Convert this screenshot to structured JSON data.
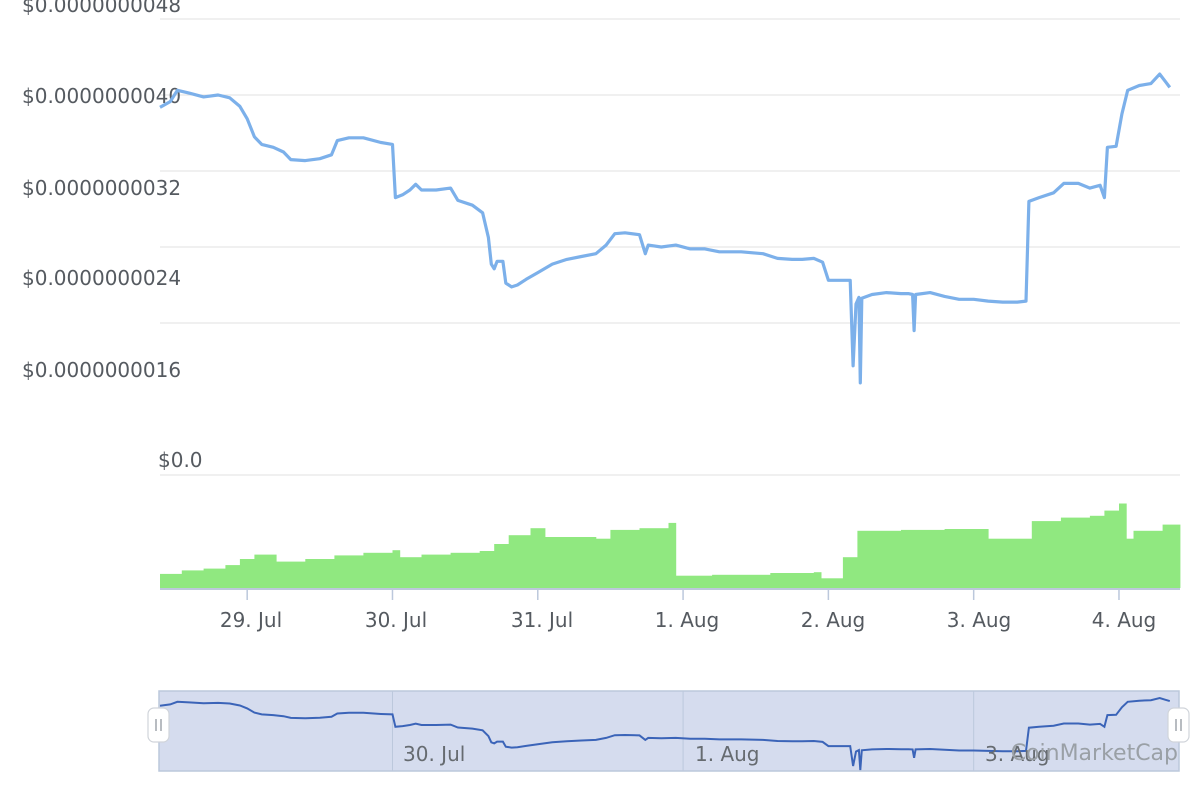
{
  "colors": {
    "price_line": "#7cb0ea",
    "volume_bar": "#90e880",
    "navigator_fill": "#d5dcee",
    "navigator_line": "#3b64b8",
    "grid": "#e0e0e0",
    "axis": "#bcc8dc"
  },
  "chart_data": {
    "type": "line",
    "x_unit": "days (0 = 28 Jul 00:00)",
    "x_range": [
      0.4,
      7.42
    ],
    "y_axis": {
      "ticks": [
        "$0.0",
        "$0.0000000016",
        "$0.0000000024",
        "$0.0000000032",
        "$0.0000000040",
        "$0.0000000048"
      ],
      "tick_values": [
        0.0,
        1.6e-09,
        2.4e-09,
        3.2e-09,
        4e-09,
        4.8e-09
      ]
    },
    "x_axis": {
      "tick_labels": [
        "29. Jul",
        "30. Jul",
        "31. Jul",
        "1. Aug",
        "2. Aug",
        "3. Aug",
        "4. Aug"
      ],
      "tick_values": [
        1,
        2,
        3,
        4,
        5,
        6,
        7
      ]
    },
    "series": [
      {
        "kind": "price",
        "points": [
          [
            0.4,
            3.87e-09
          ],
          [
            0.47,
            3.93e-09
          ],
          [
            0.52,
            4.05e-09
          ],
          [
            0.6,
            4.02e-09
          ],
          [
            0.7,
            3.98e-09
          ],
          [
            0.8,
            4e-09
          ],
          [
            0.88,
            3.97e-09
          ],
          [
            0.95,
            3.88e-09
          ],
          [
            1.0,
            3.75e-09
          ],
          [
            1.05,
            3.56e-09
          ],
          [
            1.1,
            3.48e-09
          ],
          [
            1.18,
            3.45e-09
          ],
          [
            1.25,
            3.4e-09
          ],
          [
            1.3,
            3.32e-09
          ],
          [
            1.4,
            3.31e-09
          ],
          [
            1.5,
            3.33e-09
          ],
          [
            1.58,
            3.37e-09
          ],
          [
            1.62,
            3.52e-09
          ],
          [
            1.7,
            3.55e-09
          ],
          [
            1.8,
            3.55e-09
          ],
          [
            1.92,
            3.5e-09
          ],
          [
            2.0,
            3.48e-09
          ],
          [
            2.02,
            2.92e-09
          ],
          [
            2.07,
            2.95e-09
          ],
          [
            2.12,
            3e-09
          ],
          [
            2.16,
            3.06e-09
          ],
          [
            2.2,
            3e-09
          ],
          [
            2.3,
            3e-09
          ],
          [
            2.4,
            3.02e-09
          ],
          [
            2.45,
            2.89e-09
          ],
          [
            2.55,
            2.84e-09
          ],
          [
            2.62,
            2.76e-09
          ],
          [
            2.66,
            2.5e-09
          ],
          [
            2.68,
            2.22e-09
          ],
          [
            2.7,
            2.17e-09
          ],
          [
            2.72,
            2.25e-09
          ],
          [
            2.76,
            2.25e-09
          ],
          [
            2.78,
            2.02e-09
          ],
          [
            2.82,
            1.98e-09
          ],
          [
            2.86,
            2e-09
          ],
          [
            2.92,
            2.06e-09
          ],
          [
            3.0,
            2.13e-09
          ],
          [
            3.1,
            2.22e-09
          ],
          [
            3.2,
            2.27e-09
          ],
          [
            3.3,
            2.3e-09
          ],
          [
            3.4,
            2.33e-09
          ],
          [
            3.47,
            2.42e-09
          ],
          [
            3.53,
            2.54e-09
          ],
          [
            3.6,
            2.55e-09
          ],
          [
            3.7,
            2.53e-09
          ],
          [
            3.74,
            2.33e-09
          ],
          [
            3.76,
            2.42e-09
          ],
          [
            3.85,
            2.4e-09
          ],
          [
            3.95,
            2.42e-09
          ],
          [
            4.05,
            2.38e-09
          ],
          [
            4.15,
            2.38e-09
          ],
          [
            4.25,
            2.35e-09
          ],
          [
            4.4,
            2.35e-09
          ],
          [
            4.55,
            2.33e-09
          ],
          [
            4.65,
            2.28e-09
          ],
          [
            4.75,
            2.27e-09
          ],
          [
            4.82,
            2.27e-09
          ],
          [
            4.9,
            2.28e-09
          ],
          [
            4.96,
            2.24e-09
          ],
          [
            5.0,
            2.05e-09
          ],
          [
            5.1,
            2.05e-09
          ],
          [
            5.15,
            2.05e-09
          ],
          [
            5.17,
            1.15e-09
          ],
          [
            5.19,
            1.8e-09
          ],
          [
            5.21,
            1.87e-09
          ],
          [
            5.22,
            9.7e-10
          ],
          [
            5.23,
            1.86e-09
          ],
          [
            5.3,
            1.9e-09
          ],
          [
            5.4,
            1.92e-09
          ],
          [
            5.5,
            1.91e-09
          ],
          [
            5.55,
            1.91e-09
          ],
          [
            5.58,
            1.9e-09
          ],
          [
            5.59,
            1.52e-09
          ],
          [
            5.6,
            1.9e-09
          ],
          [
            5.7,
            1.92e-09
          ],
          [
            5.8,
            1.88e-09
          ],
          [
            5.9,
            1.85e-09
          ],
          [
            6.0,
            1.85e-09
          ],
          [
            6.1,
            1.83e-09
          ],
          [
            6.2,
            1.82e-09
          ],
          [
            6.3,
            1.82e-09
          ],
          [
            6.36,
            1.83e-09
          ],
          [
            6.38,
            2.88e-09
          ],
          [
            6.45,
            2.92e-09
          ],
          [
            6.55,
            2.97e-09
          ],
          [
            6.62,
            3.07e-09
          ],
          [
            6.72,
            3.07e-09
          ],
          [
            6.8,
            3.02e-09
          ],
          [
            6.87,
            3.05e-09
          ],
          [
            6.9,
            2.92e-09
          ],
          [
            6.92,
            3.45e-09
          ],
          [
            6.98,
            3.46e-09
          ],
          [
            7.02,
            3.8e-09
          ],
          [
            7.06,
            4.05e-09
          ],
          [
            7.14,
            4.1e-09
          ],
          [
            7.22,
            4.12e-09
          ],
          [
            7.28,
            4.22e-09
          ],
          [
            7.32,
            4.14e-09
          ],
          [
            7.35,
            4.08e-09
          ]
        ]
      },
      {
        "kind": "volume",
        "points": [
          [
            0.4,
            0.16
          ],
          [
            0.55,
            0.2
          ],
          [
            0.7,
            0.22
          ],
          [
            0.85,
            0.26
          ],
          [
            0.95,
            0.33
          ],
          [
            1.05,
            0.38
          ],
          [
            1.2,
            0.3
          ],
          [
            1.4,
            0.33
          ],
          [
            1.6,
            0.37
          ],
          [
            1.8,
            0.4
          ],
          [
            2.0,
            0.43
          ],
          [
            2.05,
            0.35
          ],
          [
            2.2,
            0.38
          ],
          [
            2.4,
            0.4
          ],
          [
            2.6,
            0.42
          ],
          [
            2.7,
            0.5
          ],
          [
            2.8,
            0.6
          ],
          [
            2.95,
            0.68
          ],
          [
            3.05,
            0.58
          ],
          [
            3.4,
            0.56
          ],
          [
            3.5,
            0.66
          ],
          [
            3.7,
            0.68
          ],
          [
            3.9,
            0.74
          ],
          [
            3.95,
            0.14
          ],
          [
            4.2,
            0.15
          ],
          [
            4.6,
            0.17
          ],
          [
            4.9,
            0.18
          ],
          [
            4.95,
            0.11
          ],
          [
            5.1,
            0.35
          ],
          [
            5.2,
            0.65
          ],
          [
            5.5,
            0.66
          ],
          [
            5.8,
            0.67
          ],
          [
            6.1,
            0.56
          ],
          [
            6.4,
            0.76
          ],
          [
            6.6,
            0.8
          ],
          [
            6.8,
            0.82
          ],
          [
            6.9,
            0.88
          ],
          [
            7.0,
            0.96
          ],
          [
            7.05,
            0.56
          ],
          [
            7.1,
            0.65
          ],
          [
            7.3,
            0.72
          ]
        ]
      }
    ]
  },
  "navigator": {
    "tick_labels": [
      "30. Jul",
      "1. Aug",
      "3. Aug"
    ],
    "tick_values": [
      2,
      4,
      6
    ]
  },
  "watermark": "CoinMarketCap"
}
